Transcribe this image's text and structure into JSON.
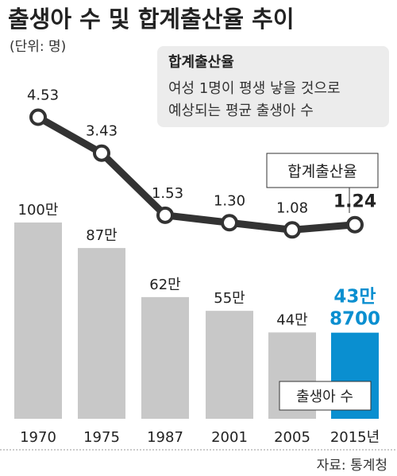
{
  "title": "출생아 수 및 합계출산율 추이",
  "unit": "(단위: 명)",
  "callout": {
    "heading": "합계출산율",
    "line1": "여성 1명이 평생 낳을 것으로",
    "line2": "예상되는 평균 출생아 수"
  },
  "line_legend": "합계출산율",
  "bar_legend": "출생아 수",
  "source": "자료: 통계청",
  "colors": {
    "bar": "#c8c8c8",
    "highlight": "#0a8fd0",
    "line": "#333333",
    "text": "#222222"
  },
  "chart_data": {
    "type": "bar",
    "categories": [
      "1970",
      "1975",
      "1987",
      "2001",
      "2005",
      "2015년"
    ],
    "series": [
      {
        "name": "출생아 수",
        "values": [
          1000000,
          870000,
          620000,
          550000,
          440000,
          438700
        ],
        "labels": [
          "100만",
          "87만",
          "62만",
          "55만",
          "44만",
          "43만 8700"
        ]
      },
      {
        "name": "합계출산율",
        "type": "line",
        "values": [
          4.53,
          3.43,
          1.53,
          1.3,
          1.08,
          1.24
        ],
        "labels": [
          "4.53",
          "3.43",
          "1.53",
          "1.30",
          "1.08",
          "1.24"
        ]
      }
    ],
    "highlight_index": 5
  }
}
